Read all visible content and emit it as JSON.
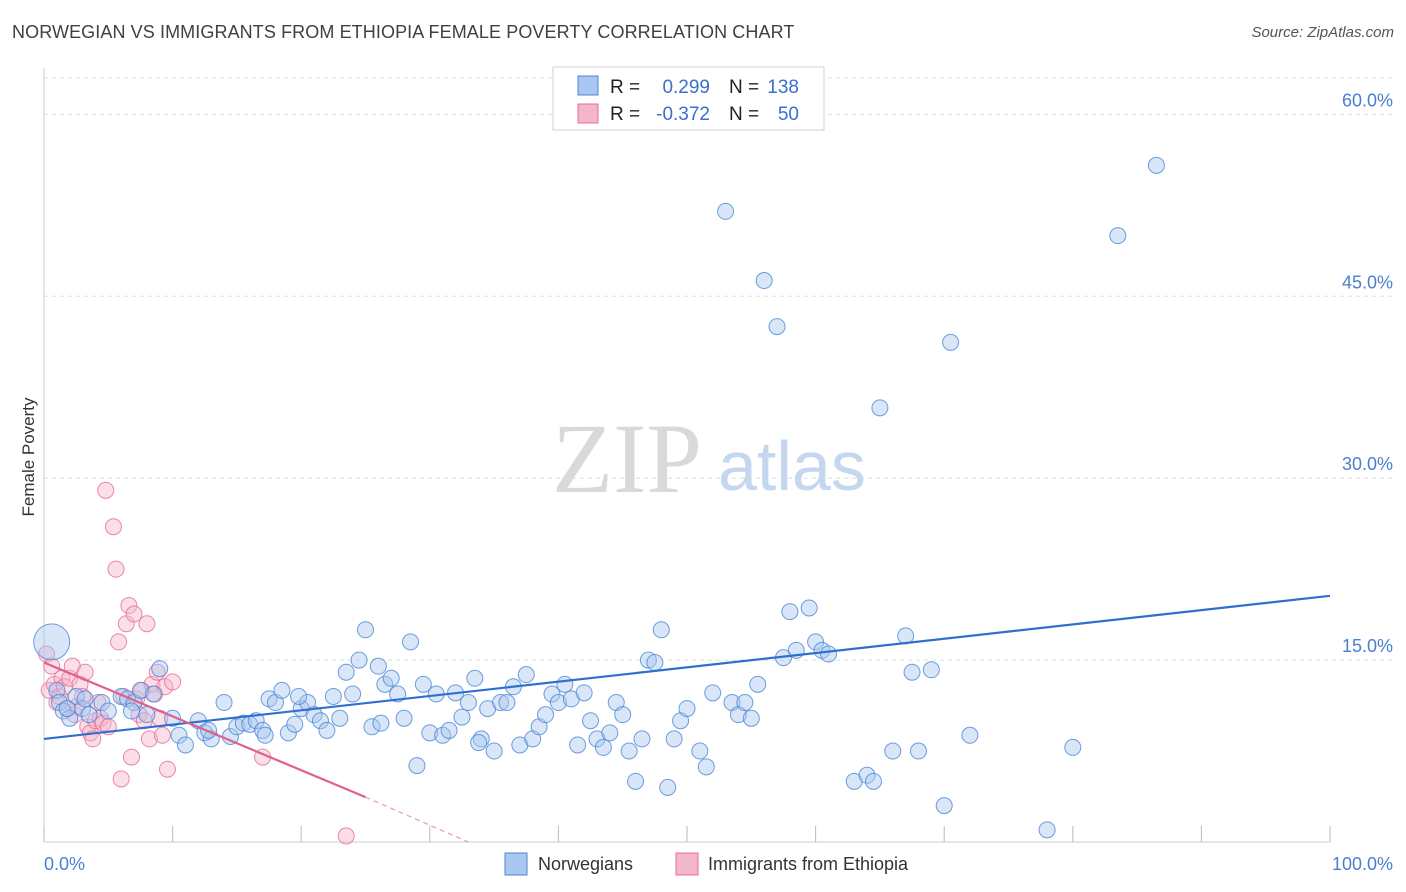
{
  "title": "NORWEGIAN VS IMMIGRANTS FROM ETHIOPIA FEMALE POVERTY CORRELATION CHART",
  "source": "Source: ZipAtlas.com",
  "watermark": {
    "zip": "ZIP",
    "atlas": "atlas"
  },
  "colors": {
    "blue": "#4a86d8",
    "blue_fill": "#a9c7ee",
    "pink": "#e86a96",
    "pink_fill": "#f4b6cb",
    "grid": "#dddddd",
    "tick_label": "#4a7fd0"
  },
  "legend": {
    "rows": [
      {
        "r_label": "R =",
        "r_value": "0.299",
        "n_label": "N =",
        "n_value": "138"
      },
      {
        "r_label": "R =",
        "r_value": "-0.372",
        "n_label": "N =",
        "n_value": "50"
      }
    ]
  },
  "chart_data": {
    "type": "scatter",
    "title": "NORWEGIAN VS IMMIGRANTS FROM ETHIOPIA FEMALE POVERTY CORRELATION CHART",
    "xlabel": "",
    "ylabel": "Female Poverty",
    "xlim": [
      0,
      100
    ],
    "ylim": [
      0,
      63
    ],
    "x_tick_labels": [
      "0.0%",
      "100.0%"
    ],
    "y_ticks": [
      15,
      30,
      45,
      60
    ],
    "y_tick_labels": [
      "15.0%",
      "30.0%",
      "45.0%",
      "60.0%"
    ],
    "grid": true,
    "legend_position": "top-center",
    "series": [
      {
        "name": "Norwegians",
        "r": 0.299,
        "n": 138,
        "trend": {
          "x": [
            0,
            100
          ],
          "y": [
            8.5,
            20.3
          ]
        },
        "points": [
          [
            0.6,
            16.5
          ],
          [
            1.0,
            12.5
          ],
          [
            1.2,
            11.5
          ],
          [
            1.5,
            10.8
          ],
          [
            2.0,
            10.2
          ],
          [
            2.5,
            12.0
          ],
          [
            3.0,
            11.0
          ],
          [
            3.5,
            10.5
          ],
          [
            4.5,
            11.5
          ],
          [
            5.0,
            10.8
          ],
          [
            6.0,
            12.0
          ],
          [
            6.5,
            11.8
          ],
          [
            7.0,
            11.5
          ],
          [
            7.5,
            12.5
          ],
          [
            8.0,
            10.5
          ],
          [
            8.5,
            12.2
          ],
          [
            9.0,
            14.3
          ],
          [
            10.0,
            10.2
          ],
          [
            10.5,
            8.8
          ],
          [
            11.0,
            8.0
          ],
          [
            12.0,
            10.0
          ],
          [
            12.5,
            9.0
          ],
          [
            13.0,
            8.5
          ],
          [
            14.0,
            11.5
          ],
          [
            14.5,
            8.7
          ],
          [
            15.0,
            9.5
          ],
          [
            15.5,
            9.8
          ],
          [
            16.0,
            9.7
          ],
          [
            16.5,
            10.0
          ],
          [
            17.0,
            9.2
          ],
          [
            17.5,
            11.8
          ],
          [
            18.0,
            11.5
          ],
          [
            18.5,
            12.5
          ],
          [
            19.0,
            9.0
          ],
          [
            19.5,
            9.7
          ],
          [
            20.0,
            11.0
          ],
          [
            20.5,
            11.5
          ],
          [
            21.0,
            10.5
          ],
          [
            21.5,
            10.0
          ],
          [
            22.0,
            9.2
          ],
          [
            22.5,
            12.0
          ],
          [
            23.0,
            10.2
          ],
          [
            23.5,
            14.0
          ],
          [
            24.0,
            12.2
          ],
          [
            24.5,
            15.0
          ],
          [
            25.0,
            17.5
          ],
          [
            25.5,
            9.5
          ],
          [
            26.0,
            14.5
          ],
          [
            26.5,
            13.0
          ],
          [
            27.0,
            13.5
          ],
          [
            27.5,
            12.2
          ],
          [
            28.0,
            10.2
          ],
          [
            28.5,
            16.5
          ],
          [
            29.0,
            6.3
          ],
          [
            29.5,
            13.0
          ],
          [
            30.0,
            9.0
          ],
          [
            30.5,
            12.2
          ],
          [
            31.0,
            8.8
          ],
          [
            31.5,
            9.2
          ],
          [
            32.0,
            12.3
          ],
          [
            32.5,
            10.3
          ],
          [
            33.0,
            11.5
          ],
          [
            33.5,
            13.5
          ],
          [
            34.0,
            8.5
          ],
          [
            34.5,
            11.0
          ],
          [
            35.0,
            7.5
          ],
          [
            35.5,
            11.5
          ],
          [
            36.0,
            11.5
          ],
          [
            36.5,
            12.8
          ],
          [
            37.0,
            8.0
          ],
          [
            37.5,
            13.8
          ],
          [
            38.0,
            8.5
          ],
          [
            38.5,
            9.5
          ],
          [
            39.0,
            10.5
          ],
          [
            39.5,
            12.2
          ],
          [
            40.0,
            11.5
          ],
          [
            40.5,
            13.0
          ],
          [
            41.0,
            11.8
          ],
          [
            41.5,
            8.0
          ],
          [
            42.0,
            12.3
          ],
          [
            42.5,
            10.0
          ],
          [
            43.0,
            8.5
          ],
          [
            43.5,
            7.8
          ],
          [
            44.0,
            9.0
          ],
          [
            44.5,
            11.5
          ],
          [
            45.0,
            10.5
          ],
          [
            45.5,
            7.5
          ],
          [
            46.0,
            5.0
          ],
          [
            46.5,
            8.5
          ],
          [
            47.0,
            15.0
          ],
          [
            47.5,
            14.8
          ],
          [
            48.0,
            17.5
          ],
          [
            48.5,
            4.5
          ],
          [
            49.0,
            8.5
          ],
          [
            49.5,
            10.0
          ],
          [
            50.0,
            11.0
          ],
          [
            51.0,
            7.5
          ],
          [
            51.5,
            6.2
          ],
          [
            52.0,
            12.3
          ],
          [
            53.0,
            52.0
          ],
          [
            53.5,
            11.5
          ],
          [
            54.0,
            10.5
          ],
          [
            54.5,
            11.5
          ],
          [
            55.0,
            10.2
          ],
          [
            55.5,
            13.0
          ],
          [
            56.0,
            46.3
          ],
          [
            57.0,
            42.5
          ],
          [
            57.5,
            15.2
          ],
          [
            58.0,
            19.0
          ],
          [
            58.5,
            15.8
          ],
          [
            59.5,
            19.3
          ],
          [
            60.0,
            16.5
          ],
          [
            60.5,
            15.8
          ],
          [
            61.0,
            15.5
          ],
          [
            63.0,
            5.0
          ],
          [
            64.0,
            5.5
          ],
          [
            64.5,
            5.0
          ],
          [
            65.0,
            35.8
          ],
          [
            66.0,
            7.5
          ],
          [
            67.0,
            17.0
          ],
          [
            67.5,
            14.0
          ],
          [
            68.0,
            7.5
          ],
          [
            69.0,
            14.2
          ],
          [
            70.0,
            3.0
          ],
          [
            70.5,
            41.2
          ],
          [
            72.0,
            8.8
          ],
          [
            78.0,
            1.0
          ],
          [
            80.0,
            7.8
          ],
          [
            83.5,
            50.0
          ],
          [
            86.5,
            55.8
          ],
          [
            1.8,
            11.0
          ],
          [
            3.2,
            11.8
          ],
          [
            6.8,
            10.8
          ],
          [
            12.8,
            9.2
          ],
          [
            17.2,
            8.8
          ],
          [
            19.8,
            12.0
          ],
          [
            26.2,
            9.8
          ],
          [
            33.8,
            8.2
          ]
        ]
      },
      {
        "name": "Immigrants from Ethiopia",
        "r": -0.372,
        "n": 50,
        "trend": {
          "x": [
            0,
            25
          ],
          "y": [
            14.8,
            3.7
          ]
        },
        "trend_dashed": {
          "x": [
            25,
            33
          ],
          "y": [
            3.7,
            0.0
          ]
        },
        "points": [
          [
            0.2,
            15.5
          ],
          [
            0.4,
            12.5
          ],
          [
            0.6,
            14.5
          ],
          [
            0.8,
            13.0
          ],
          [
            1.0,
            11.5
          ],
          [
            1.2,
            12.0
          ],
          [
            1.4,
            13.5
          ],
          [
            1.6,
            12.8
          ],
          [
            1.8,
            11.0
          ],
          [
            2.0,
            13.5
          ],
          [
            2.2,
            14.5
          ],
          [
            2.4,
            10.5
          ],
          [
            2.6,
            11.2
          ],
          [
            2.8,
            13.0
          ],
          [
            3.0,
            12.0
          ],
          [
            3.2,
            14.0
          ],
          [
            3.4,
            9.5
          ],
          [
            3.6,
            9.0
          ],
          [
            3.8,
            8.5
          ],
          [
            4.0,
            10.0
          ],
          [
            4.2,
            11.5
          ],
          [
            4.4,
            10.2
          ],
          [
            4.6,
            9.8
          ],
          [
            4.8,
            29.0
          ],
          [
            5.0,
            9.5
          ],
          [
            5.4,
            26.0
          ],
          [
            5.6,
            22.5
          ],
          [
            5.8,
            16.5
          ],
          [
            6.0,
            5.2
          ],
          [
            6.2,
            12.0
          ],
          [
            6.4,
            18.0
          ],
          [
            6.6,
            19.5
          ],
          [
            6.8,
            7.0
          ],
          [
            7.0,
            18.8
          ],
          [
            7.2,
            11.8
          ],
          [
            7.4,
            10.5
          ],
          [
            7.6,
            12.5
          ],
          [
            7.8,
            10.0
          ],
          [
            8.0,
            18.0
          ],
          [
            8.2,
            8.5
          ],
          [
            8.4,
            13.0
          ],
          [
            8.6,
            12.2
          ],
          [
            8.8,
            14.0
          ],
          [
            9.0,
            10.2
          ],
          [
            9.2,
            8.8
          ],
          [
            9.4,
            12.8
          ],
          [
            9.6,
            6.0
          ],
          [
            10.0,
            13.2
          ],
          [
            17.0,
            7.0
          ],
          [
            23.5,
            0.5
          ]
        ]
      }
    ]
  },
  "bottom_legend": {
    "items": [
      "Norwegians",
      "Immigrants from Ethiopia"
    ]
  }
}
